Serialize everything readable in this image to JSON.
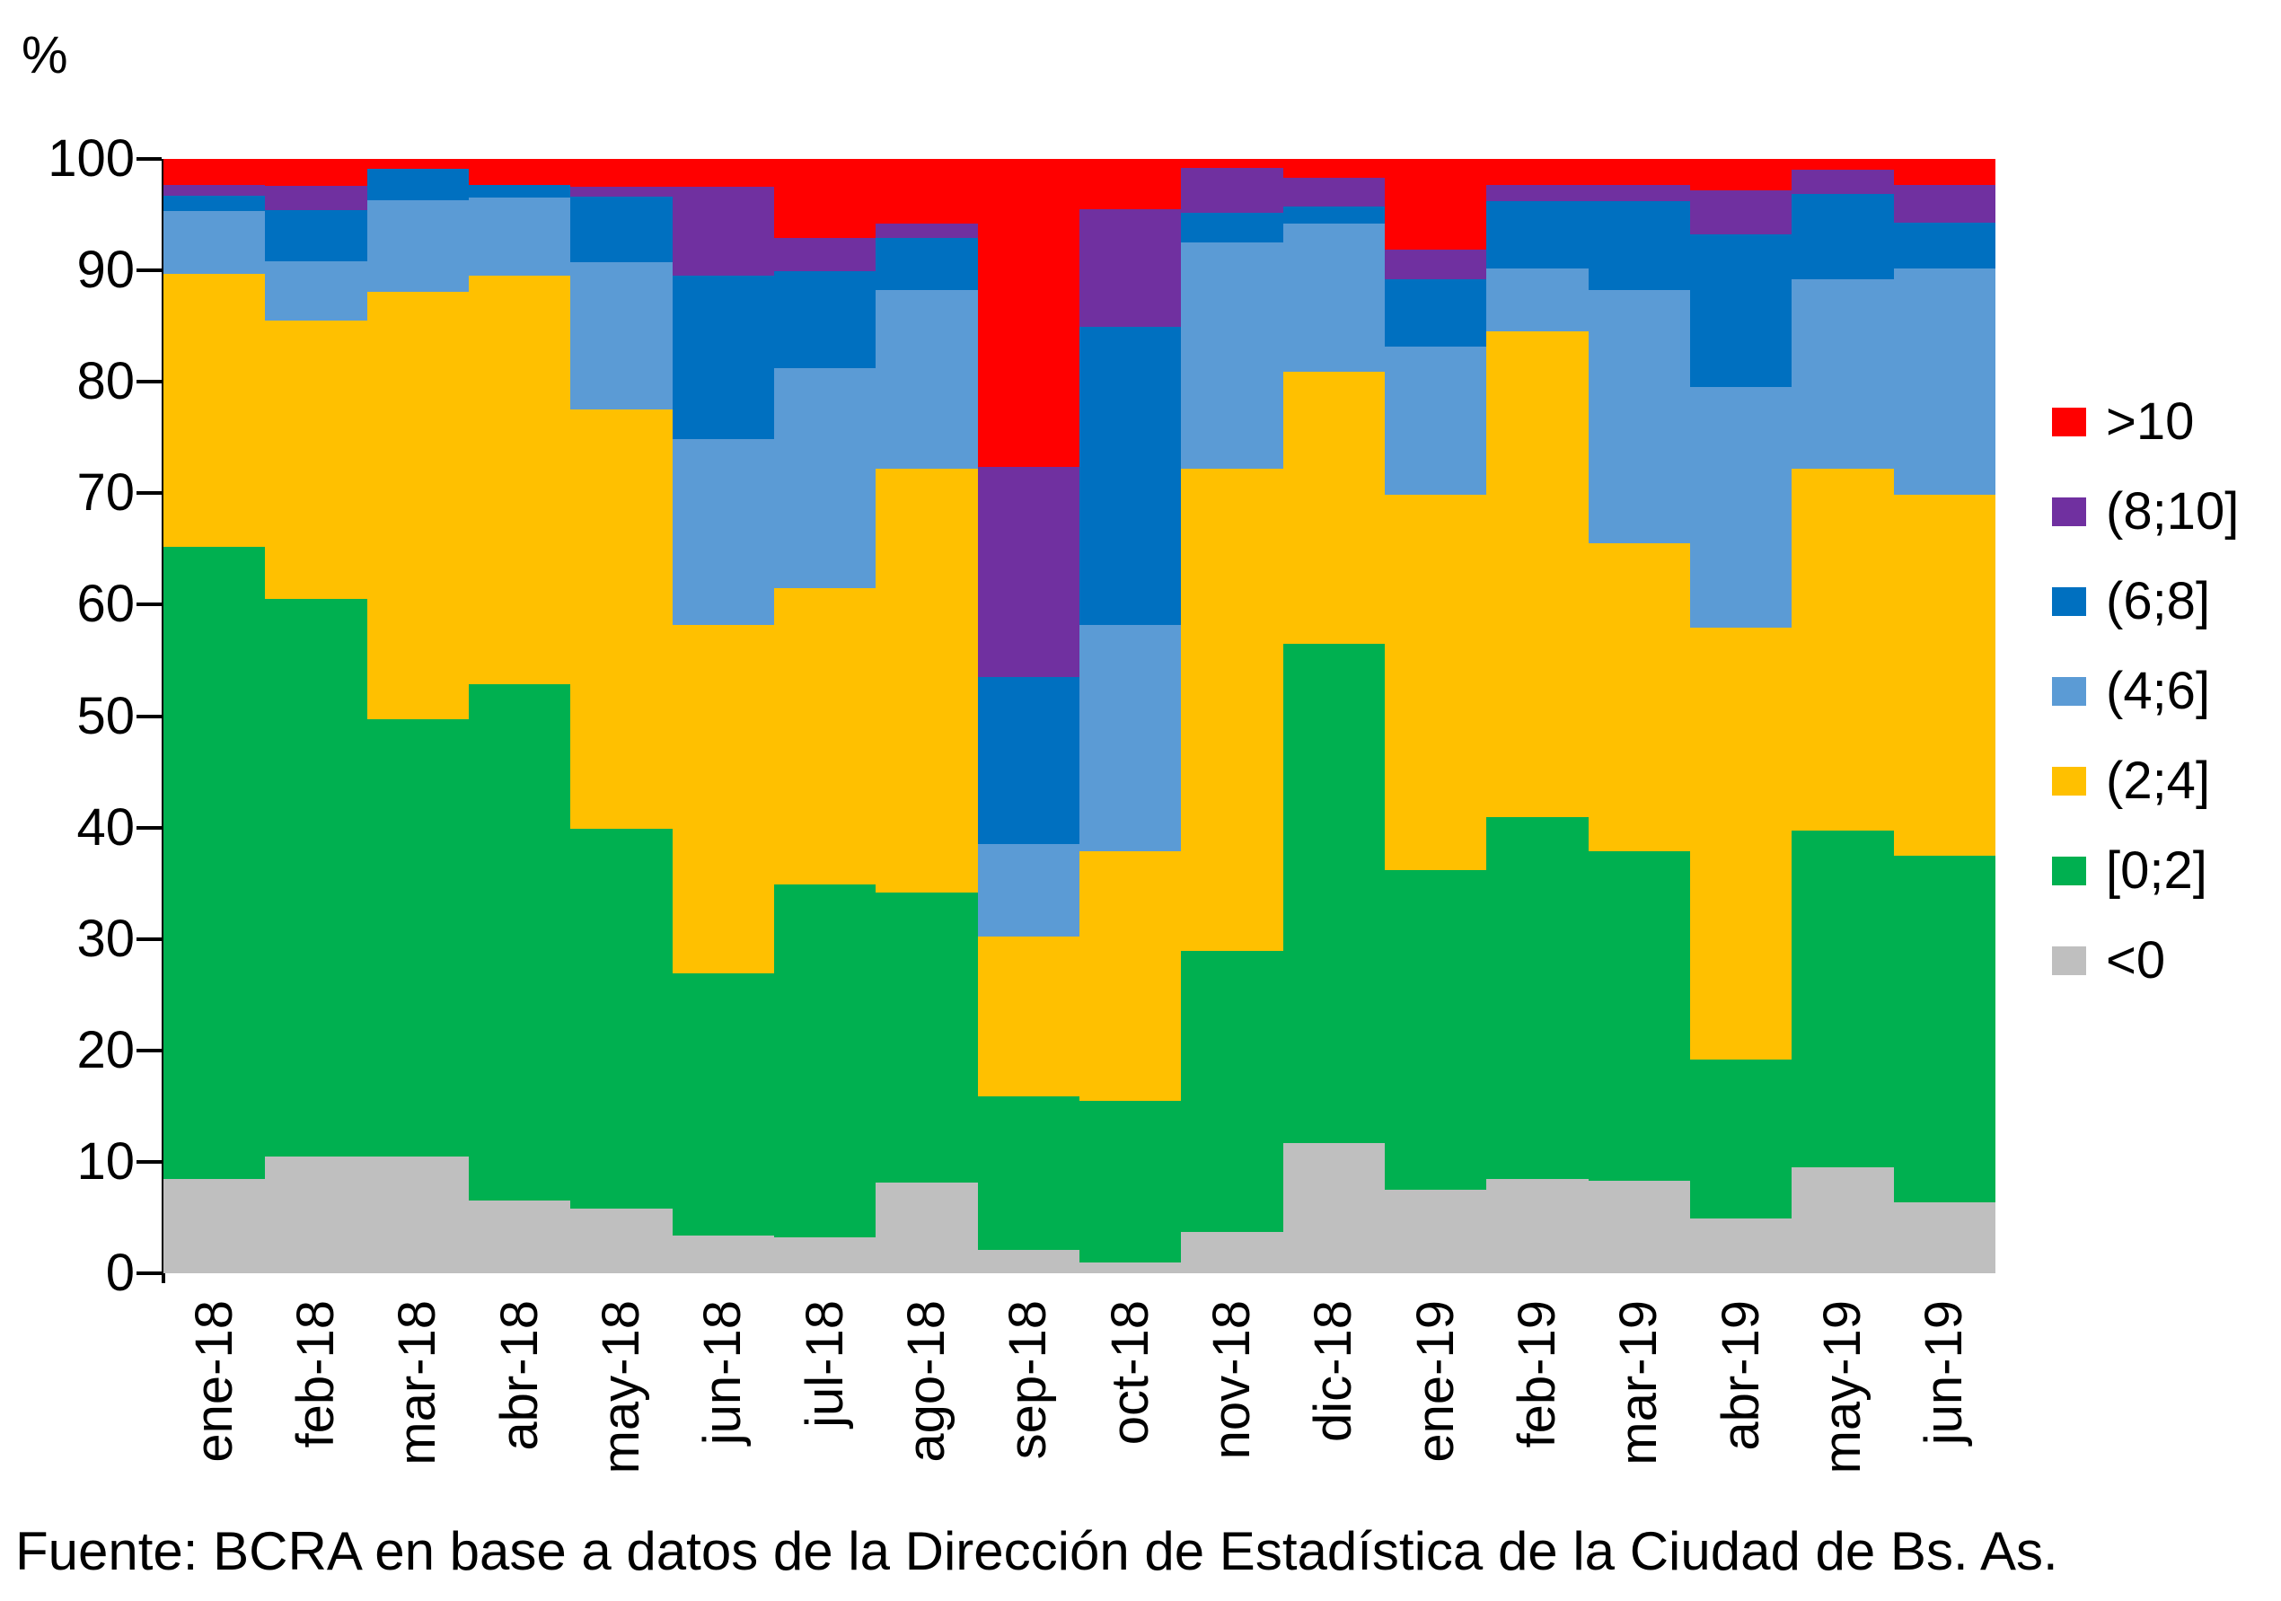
{
  "y_axis_unit": "%",
  "footer": "Fuente: BCRA en base a datos de la Dirección de Estadística de la Ciudad de Bs. As.",
  "axis_color": "#000000",
  "chart_data": {
    "type": "bar",
    "stacked": true,
    "stack_total": 100,
    "title": "",
    "xlabel": "",
    "ylabel": "%",
    "ylim": [
      0,
      100
    ],
    "yticks": [
      0,
      10,
      20,
      30,
      40,
      50,
      60,
      70,
      80,
      90,
      100
    ],
    "grid": false,
    "legend_position": "right",
    "categories": [
      "ene-18",
      "feb-18",
      "mar-18",
      "abr-18",
      "may-18",
      "jun-18",
      "jul-18",
      "ago-18",
      "sep-18",
      "oct-18",
      "nov-18",
      "dic-18",
      "ene-19",
      "feb-19",
      "mar-19",
      "abr-19",
      "may-19",
      "jun-19"
    ],
    "series": [
      {
        "name": "<0",
        "color": "#BFBFBF",
        "values": [
          8.5,
          10.5,
          10.5,
          6.5,
          5.8,
          3.4,
          3.2,
          8.1,
          2.1,
          1.0,
          3.7,
          11.7,
          7.5,
          8.5,
          8.3,
          4.9,
          9.5,
          6.4
        ]
      },
      {
        "name": "[0;2]",
        "color": "#00B050",
        "values": [
          56.7,
          50.0,
          39.2,
          46.4,
          34.1,
          23.5,
          31.7,
          26.1,
          13.8,
          14.5,
          25.2,
          44.8,
          28.7,
          32.4,
          29.6,
          14.3,
          30.2,
          31.1
        ]
      },
      {
        "name": "(2;4]",
        "color": "#FFC000",
        "values": [
          24.5,
          25.0,
          38.4,
          36.6,
          37.6,
          31.3,
          26.6,
          38.0,
          14.3,
          22.4,
          43.3,
          24.4,
          33.7,
          43.6,
          27.6,
          38.7,
          32.5,
          32.4
        ]
      },
      {
        "name": "(4;6]",
        "color": "#5B9BD5",
        "values": [
          5.6,
          5.3,
          8.2,
          7.0,
          13.2,
          16.7,
          19.7,
          16.0,
          8.3,
          20.3,
          20.3,
          13.3,
          13.3,
          5.7,
          22.7,
          21.6,
          17.0,
          20.3
        ]
      },
      {
        "name": "(6;8]",
        "color": "#0070C0",
        "values": [
          1.4,
          4.6,
          2.8,
          1.2,
          5.9,
          14.6,
          8.7,
          4.7,
          15.0,
          26.7,
          2.7,
          1.5,
          6.0,
          6.0,
          8.0,
          13.7,
          7.7,
          4.1
        ]
      },
      {
        "name": "(8;10]",
        "color": "#7030A0",
        "values": [
          1.0,
          2.2,
          0.0,
          0.0,
          0.9,
          8.0,
          3.0,
          1.3,
          18.9,
          10.6,
          4.0,
          2.6,
          2.7,
          1.5,
          1.5,
          4.0,
          2.1,
          3.4
        ]
      },
      {
        "name": ">10",
        "color": "#FF0000",
        "values": [
          2.3,
          2.4,
          0.9,
          2.3,
          2.5,
          2.5,
          7.1,
          5.8,
          27.6,
          4.5,
          0.8,
          1.7,
          8.1,
          2.3,
          2.3,
          2.8,
          1.0,
          2.3
        ]
      }
    ],
    "legend_order": [
      ">10",
      "(8;10]",
      "(6;8]",
      "(4;6]",
      "(2;4]",
      "[0;2]",
      "<0"
    ]
  }
}
